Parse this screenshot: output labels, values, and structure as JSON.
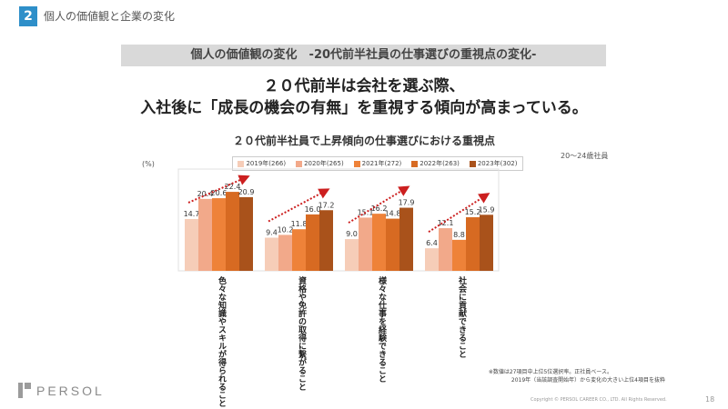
{
  "section": {
    "number": "2",
    "title": "個人の価値観と企業の変化"
  },
  "banner": "個人の価値観の変化　-20代前半社員の仕事選びの重視点の変化-",
  "headline": {
    "line1": "２０代前半は会社を選ぶ際、",
    "line2": "入社後に「成長の機会の有無」を重視する傾向が高まっている。"
  },
  "chart_data": {
    "type": "bar",
    "title": "２０代前半社員で上昇傾向の仕事選びにおける重視点",
    "subtitle": "20～24歳社員",
    "unit": "(%)",
    "legend_position": "top",
    "categories": [
      "色々な知識やスキルが得られること",
      "資格や免許の取得に繋がること",
      "様々な仕事を経験できること",
      "社会に貢献できること"
    ],
    "series": [
      {
        "name": "2019年(266)",
        "color": "#f6cdb8",
        "values": [
          14.7,
          9.4,
          9.0,
          6.4
        ]
      },
      {
        "name": "2020年(265)",
        "color": "#f2a98a",
        "values": [
          20.4,
          10.2,
          15.1,
          12.1
        ]
      },
      {
        "name": "2021年(272)",
        "color": "#ee8239",
        "values": [
          20.6,
          11.8,
          16.2,
          8.8
        ]
      },
      {
        "name": "2022年(263)",
        "color": "#d76a22",
        "values": [
          22.4,
          16.0,
          14.8,
          15.2
        ]
      },
      {
        "name": "2023年(302)",
        "color": "#a9521b",
        "values": [
          20.9,
          17.2,
          17.9,
          15.9
        ]
      }
    ],
    "ylim": [
      0,
      28
    ]
  },
  "footnotes": {
    "line1": "※数値は27項目中上位5位選択率。正社員ベース。",
    "line2": "2019年（当該調査開始年）から変化の大きい上位4項目を抜粋"
  },
  "brand": "PERSOL",
  "copyright": "Copyright © PERSOL CAREER CO., LTD. All Rights Reserved.",
  "page_number": "18"
}
